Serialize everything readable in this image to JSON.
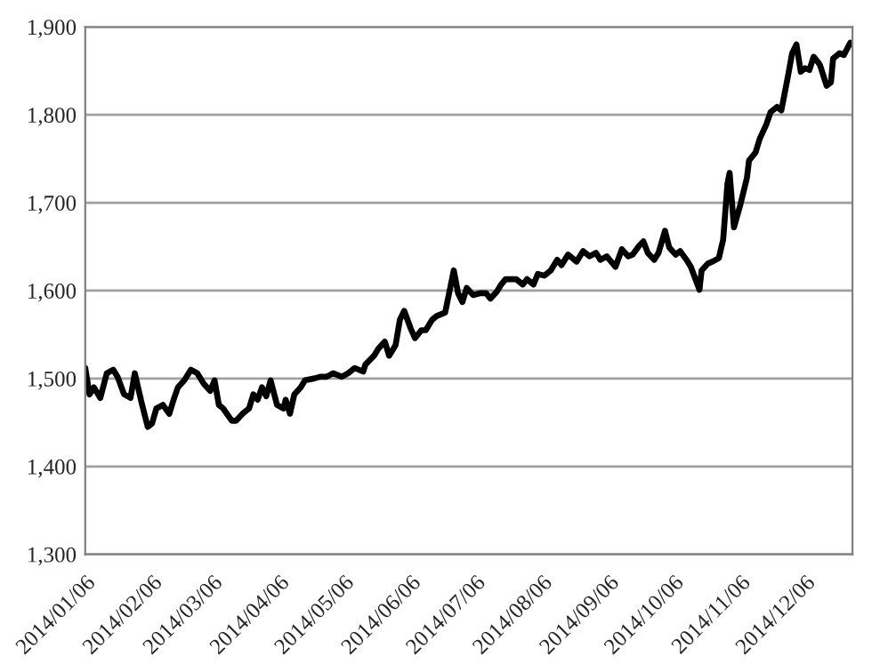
{
  "chart_data": {
    "type": "line",
    "x": [
      "2014-01-06",
      "2014-01-08",
      "2014-01-10",
      "2014-01-13",
      "2014-01-16",
      "2014-01-19",
      "2014-01-21",
      "2014-01-24",
      "2014-01-27",
      "2014-01-29",
      "2014-02-01",
      "2014-02-04",
      "2014-02-06",
      "2014-02-08",
      "2014-02-11",
      "2014-02-14",
      "2014-02-16",
      "2014-02-18",
      "2014-02-21",
      "2014-02-24",
      "2014-02-27",
      "2014-03-02",
      "2014-03-05",
      "2014-03-07",
      "2014-03-09",
      "2014-03-11",
      "2014-03-15",
      "2014-03-17",
      "2014-03-20",
      "2014-03-23",
      "2014-03-25",
      "2014-03-27",
      "2014-03-29",
      "2014-03-31",
      "2014-04-02",
      "2014-04-05",
      "2014-04-08",
      "2014-04-09",
      "2014-04-11",
      "2014-04-13",
      "2014-04-16",
      "2014-04-18",
      "2014-04-22",
      "2014-04-25",
      "2014-04-28",
      "2014-05-01",
      "2014-05-05",
      "2014-05-08",
      "2014-05-11",
      "2014-05-15",
      "2014-05-16",
      "2014-05-20",
      "2014-05-22",
      "2014-05-25",
      "2014-05-27",
      "2014-05-30",
      "2014-06-01",
      "2014-06-03",
      "2014-06-06",
      "2014-06-08",
      "2014-06-11",
      "2014-06-13",
      "2014-06-16",
      "2014-06-18",
      "2014-06-22",
      "2014-06-23",
      "2014-06-26",
      "2014-06-28",
      "2014-06-30",
      "2014-07-02",
      "2014-07-05",
      "2014-07-08",
      "2014-07-11",
      "2014-07-13",
      "2014-07-16",
      "2014-07-18",
      "2014-07-20",
      "2014-07-25",
      "2014-07-28",
      "2014-07-30",
      "2014-08-02",
      "2014-08-04",
      "2014-08-07",
      "2014-08-10",
      "2014-08-13",
      "2014-08-15",
      "2014-08-18",
      "2014-08-22",
      "2014-08-25",
      "2014-08-28",
      "2014-08-31",
      "2014-09-02",
      "2014-09-05",
      "2014-09-09",
      "2014-09-12",
      "2014-09-15",
      "2014-09-17",
      "2014-09-20",
      "2014-09-22",
      "2014-09-24",
      "2014-09-27",
      "2014-09-29",
      "2014-10-02",
      "2014-10-04",
      "2014-10-07",
      "2014-10-09",
      "2014-10-12",
      "2014-10-14",
      "2014-10-18",
      "2014-10-19",
      "2014-10-22",
      "2014-10-24",
      "2014-10-27",
      "2014-10-29",
      "2014-10-31",
      "2014-11-01",
      "2014-11-03",
      "2014-11-06",
      "2014-11-09",
      "2014-11-10",
      "2014-11-13",
      "2014-11-15",
      "2014-11-18",
      "2014-11-20",
      "2014-11-23",
      "2014-11-25",
      "2014-11-28",
      "2014-11-30",
      "2014-12-02",
      "2014-12-04",
      "2014-12-06",
      "2014-12-08",
      "2014-12-10",
      "2014-12-12",
      "2014-12-13",
      "2014-12-16",
      "2014-12-18",
      "2014-12-19",
      "2014-12-22",
      "2014-12-24",
      "2014-12-27"
    ],
    "series": [
      {
        "color": "#000000",
        "values": [
          1512,
          1482,
          1490,
          1478,
          1506,
          1510,
          1502,
          1482,
          1478,
          1506,
          1474,
          1445,
          1449,
          1466,
          1470,
          1460,
          1476,
          1490,
          1498,
          1510,
          1506,
          1494,
          1486,
          1498,
          1470,
          1466,
          1452,
          1452,
          1460,
          1466,
          1482,
          1476,
          1490,
          1480,
          1498,
          1470,
          1466,
          1476,
          1460,
          1482,
          1490,
          1498,
          1500,
          1502,
          1502,
          1506,
          1502,
          1506,
          1512,
          1508,
          1516,
          1526,
          1534,
          1542,
          1526,
          1538,
          1567,
          1577,
          1557,
          1546,
          1555,
          1555,
          1567,
          1571,
          1575,
          1587,
          1623,
          1597,
          1587,
          1603,
          1595,
          1597,
          1597,
          1591,
          1599,
          1607,
          1613,
          1613,
          1607,
          1613,
          1607,
          1619,
          1617,
          1623,
          1635,
          1629,
          1641,
          1633,
          1645,
          1639,
          1643,
          1635,
          1639,
          1627,
          1647,
          1639,
          1641,
          1651,
          1656,
          1643,
          1635,
          1643,
          1668,
          1649,
          1641,
          1645,
          1635,
          1627,
          1601,
          1623,
          1631,
          1633,
          1637,
          1658,
          1722,
          1734,
          1672,
          1698,
          1728,
          1748,
          1757,
          1773,
          1789,
          1803,
          1809,
          1805,
          1843,
          1870,
          1880,
          1849,
          1853,
          1851,
          1866,
          1860,
          1856,
          1833,
          1837,
          1864,
          1870,
          1868,
          1882
        ]
      }
    ],
    "xlim": [
      "2014-01-06",
      "2014-12-28"
    ],
    "xticks": [
      {
        "value": "2014-01-06",
        "label": "2014/01/06"
      },
      {
        "value": "2014-02-06",
        "label": "2014/02/06"
      },
      {
        "value": "2014-03-06",
        "label": "2014/03/06"
      },
      {
        "value": "2014-04-06",
        "label": "2014/04/06"
      },
      {
        "value": "2014-05-06",
        "label": "2014/05/06"
      },
      {
        "value": "2014-06-06",
        "label": "2014/06/06"
      },
      {
        "value": "2014-07-06",
        "label": "2014/07/06"
      },
      {
        "value": "2014-08-06",
        "label": "2014/08/06"
      },
      {
        "value": "2014-09-06",
        "label": "2014/09/06"
      },
      {
        "value": "2014-10-06",
        "label": "2014/10/06"
      },
      {
        "value": "2014-11-06",
        "label": "2014/11/06"
      },
      {
        "value": "2014-12-06",
        "label": "2014/12/06"
      }
    ],
    "ylim": [
      1300,
      1900
    ],
    "yticks": [
      {
        "value": 1300,
        "label": "1,300"
      },
      {
        "value": 1400,
        "label": "1,400"
      },
      {
        "value": 1500,
        "label": "1,500"
      },
      {
        "value": 1600,
        "label": "1,600"
      },
      {
        "value": 1700,
        "label": "1,700"
      },
      {
        "value": 1800,
        "label": "1,800"
      },
      {
        "value": 1900,
        "label": "1,900"
      }
    ],
    "grid": "y",
    "legend": false,
    "marker": "none",
    "line_style": "solid"
  }
}
